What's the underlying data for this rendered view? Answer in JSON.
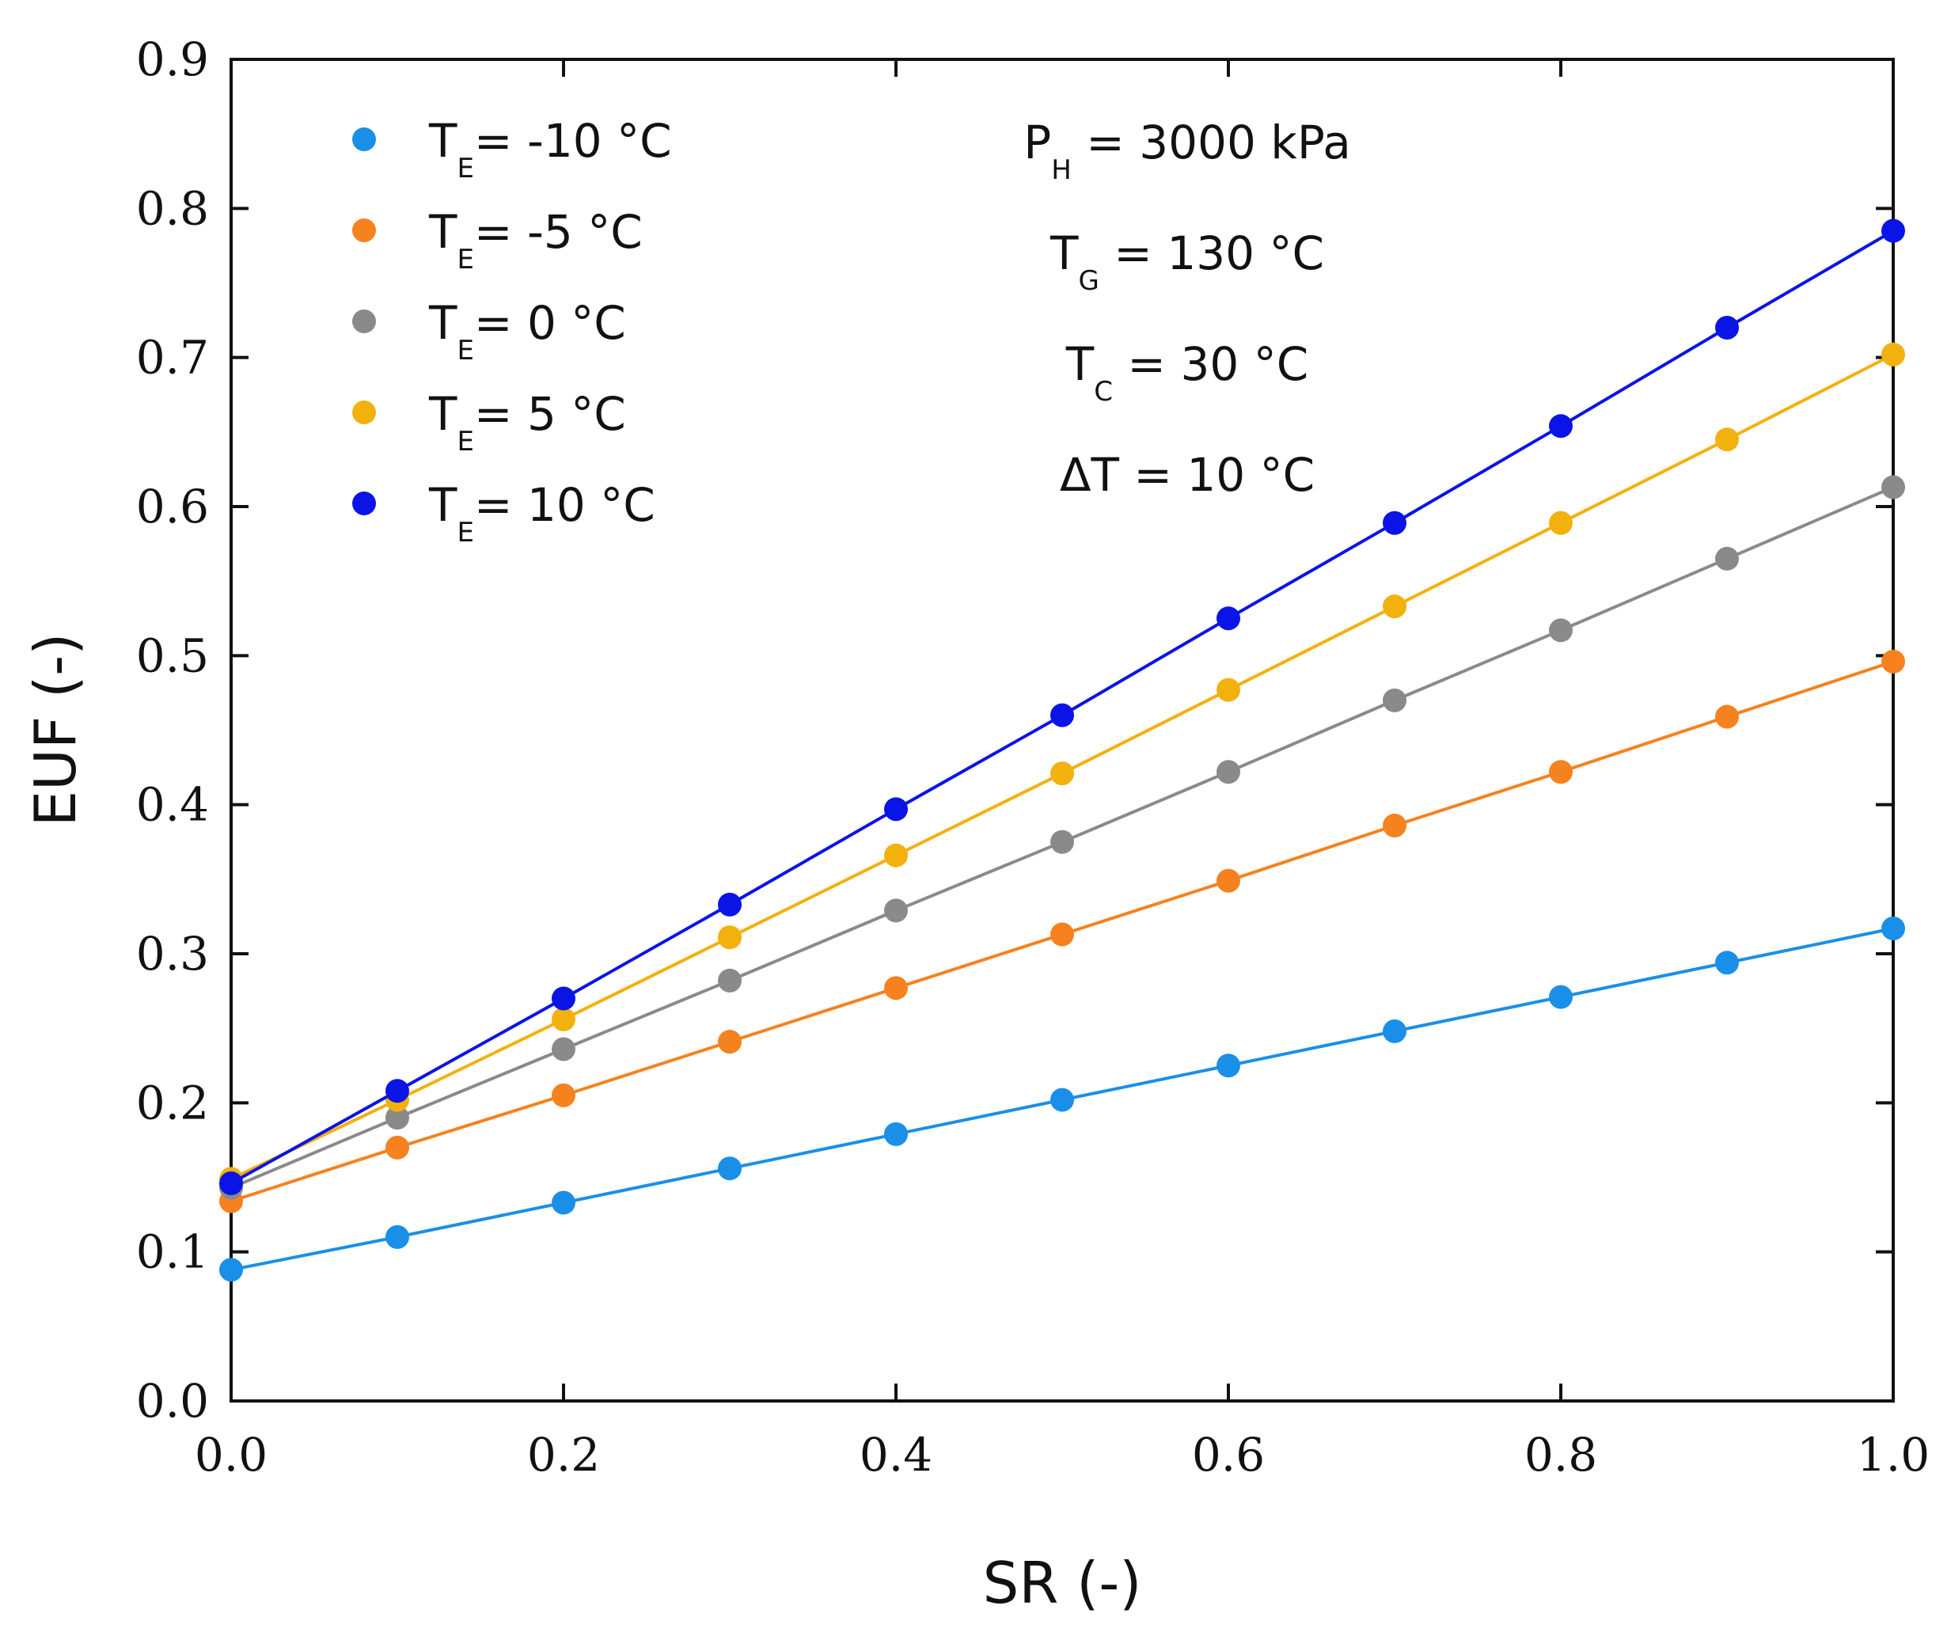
{
  "chart_data": {
    "type": "line",
    "title": "",
    "xlabel": "SR (-)",
    "ylabel": "EUF (-)",
    "xlim": [
      0.0,
      1.0
    ],
    "ylim": [
      0.0,
      0.9
    ],
    "x_ticks": [
      "0.0",
      "0.2",
      "0.4",
      "0.6",
      "0.8",
      "1.0"
    ],
    "x_tick_values": [
      0.0,
      0.2,
      0.4,
      0.6,
      0.8,
      1.0
    ],
    "y_ticks": [
      "0.0",
      "0.1",
      "0.2",
      "0.3",
      "0.4",
      "0.5",
      "0.6",
      "0.7",
      "0.8",
      "0.9"
    ],
    "y_tick_values": [
      0.0,
      0.1,
      0.2,
      0.3,
      0.4,
      0.5,
      0.6,
      0.7,
      0.8,
      0.9
    ],
    "grid": false,
    "legend_position": "top-left",
    "x": [
      0.0,
      0.1,
      0.2,
      0.3,
      0.4,
      0.5,
      0.6,
      0.7,
      0.8,
      0.9,
      1.0
    ],
    "series": [
      {
        "name": "TE= -10 °C",
        "label_main": "T",
        "label_sub": "E",
        "label_rest": "= -10 °C",
        "color": "#1a8fe8",
        "values": [
          0.088,
          0.11,
          0.133,
          0.156,
          0.179,
          0.202,
          0.225,
          0.248,
          0.271,
          0.294,
          0.317
        ]
      },
      {
        "name": "TE= -5 °C",
        "label_main": "T",
        "label_sub": "E",
        "label_rest": "= -5 °C",
        "color": "#f5821f",
        "values": [
          0.134,
          0.17,
          0.205,
          0.241,
          0.277,
          0.313,
          0.349,
          0.386,
          0.422,
          0.459,
          0.496
        ]
      },
      {
        "name": "TE= 0 °C",
        "label_main": "T",
        "label_sub": "E",
        "label_rest": "= 0 °C",
        "color": "#8a8a8a",
        "values": [
          0.143,
          0.19,
          0.236,
          0.282,
          0.329,
          0.375,
          0.422,
          0.47,
          0.517,
          0.565,
          0.613
        ]
      },
      {
        "name": "TE= 5 °C",
        "label_main": "T",
        "label_sub": "E",
        "label_rest": "= 5 °C",
        "color": "#f2b10d",
        "values": [
          0.149,
          0.202,
          0.256,
          0.311,
          0.366,
          0.421,
          0.477,
          0.533,
          0.589,
          0.645,
          0.702
        ]
      },
      {
        "name": "TE= 10 °C",
        "label_main": "T",
        "label_sub": "E",
        "label_rest": "= 10 °C",
        "color": "#0a14e6",
        "values": [
          0.146,
          0.208,
          0.27,
          0.333,
          0.397,
          0.46,
          0.525,
          0.589,
          0.654,
          0.72,
          0.785
        ]
      }
    ],
    "annotations": [
      {
        "main": "P",
        "sub": "H",
        "rest": " = 3000 kPa"
      },
      {
        "main": "T",
        "sub": "G",
        "rest": " = 130 °C"
      },
      {
        "main": "T",
        "sub": "C",
        "rest": " = 30 °C"
      },
      {
        "main": "ΔT = 10 °C",
        "sub": "",
        "rest": ""
      }
    ]
  }
}
